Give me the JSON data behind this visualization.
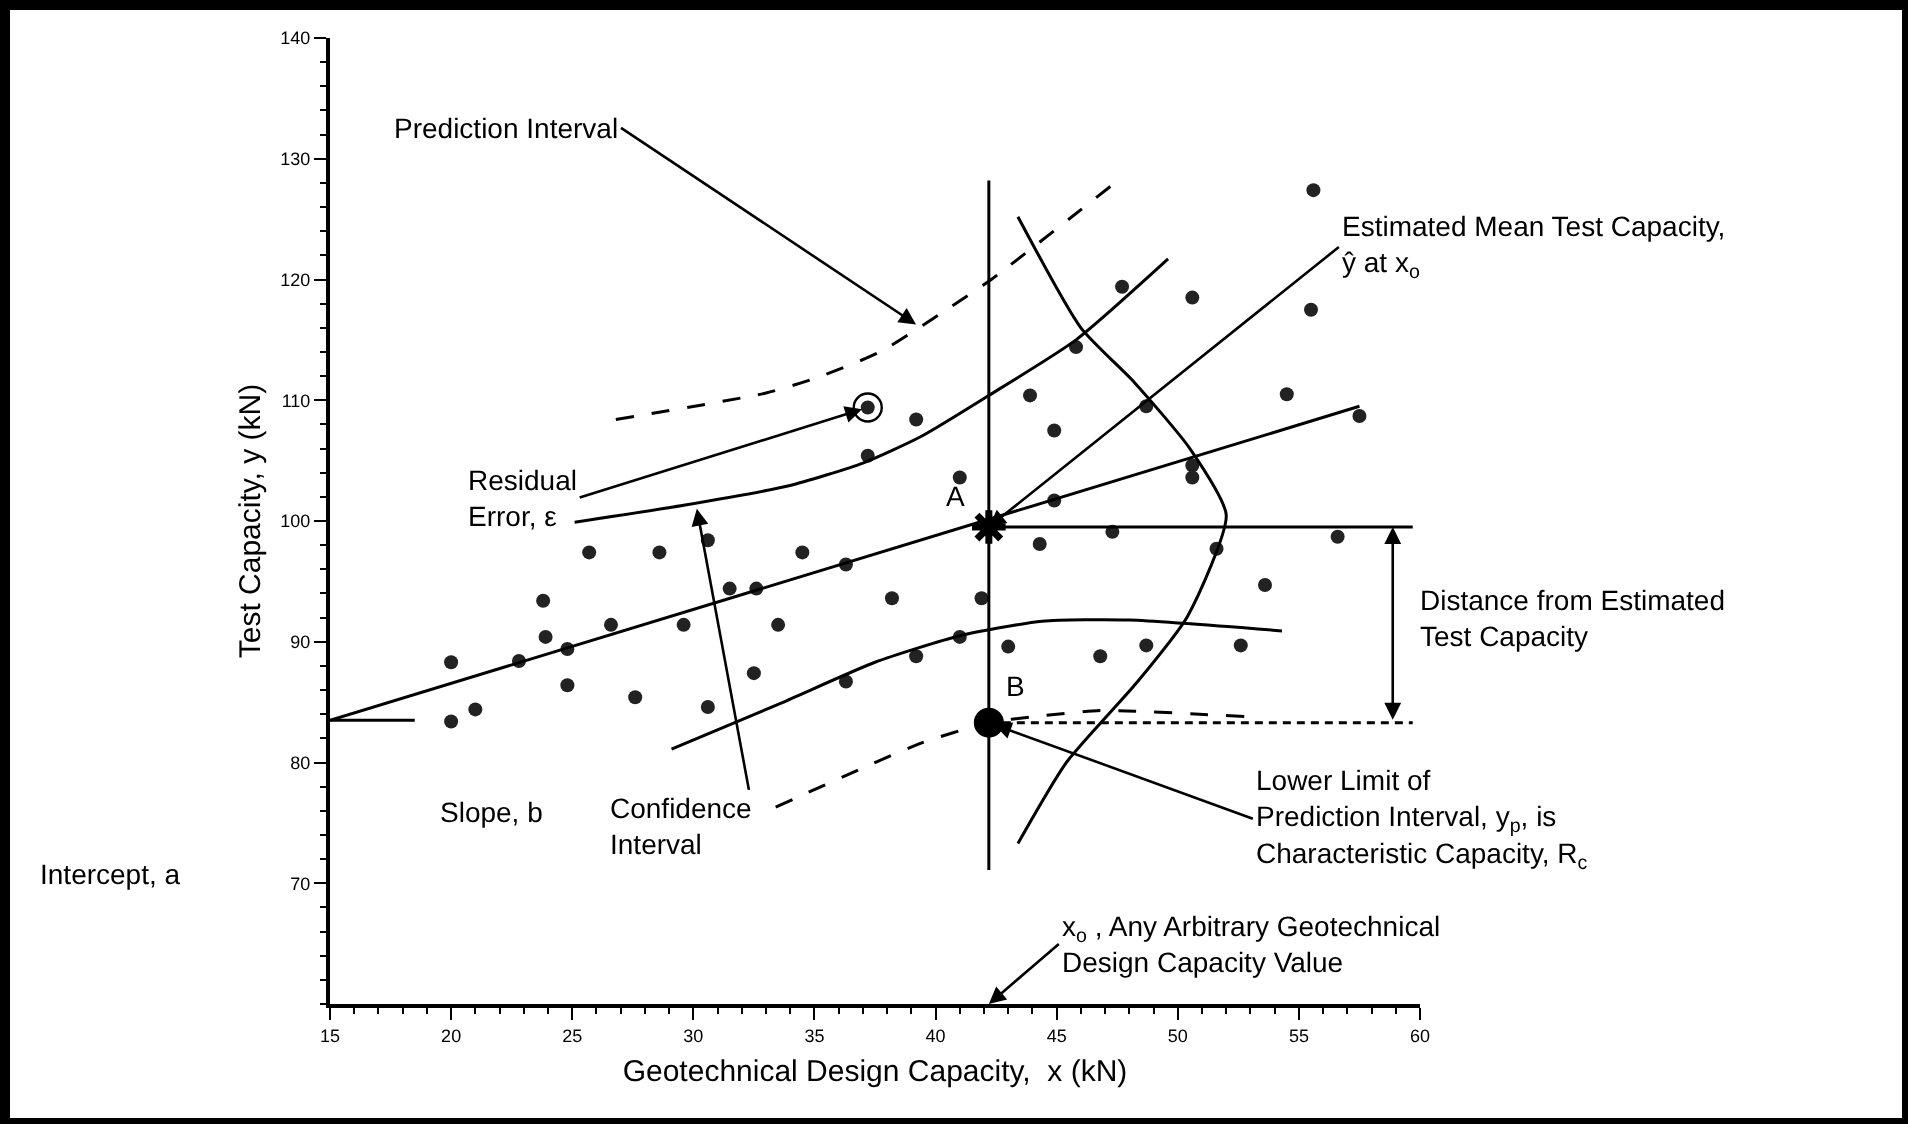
{
  "chart_data": {
    "type": "scatter",
    "xlabel": "Geotechnical Design Capacity,  x (kN)",
    "ylabel": "Test Capacity, y (kN)",
    "xlim": [
      15,
      60
    ],
    "xticks": [
      15,
      {
        "value": 16,
        "label": null
      },
      {
        "value": 17,
        "label": null
      },
      {
        "value": 18,
        "label": null
      },
      {
        "value": 19,
        "label": null
      },
      20,
      {
        "value": 21,
        "label": null
      },
      {
        "value": 22,
        "label": null
      },
      {
        "value": 23,
        "label": null
      },
      {
        "value": 24,
        "label": null
      },
      25,
      {
        "value": 26,
        "label": null
      },
      {
        "value": 27,
        "label": null
      },
      {
        "value": 28,
        "label": null
      },
      {
        "value": 29,
        "label": null
      },
      30,
      {
        "value": 31,
        "label": null
      },
      {
        "value": 32,
        "label": null
      },
      {
        "value": 33,
        "label": null
      },
      {
        "value": 34,
        "label": null
      },
      35,
      {
        "value": 36,
        "label": null
      },
      {
        "value": 37,
        "label": null
      },
      {
        "value": 38,
        "label": null
      },
      {
        "value": 39,
        "label": null
      },
      40,
      {
        "value": 41,
        "label": null
      },
      {
        "value": 42,
        "label": null
      },
      {
        "value": 43,
        "label": null
      },
      {
        "value": 44,
        "label": null
      },
      45,
      {
        "value": 46,
        "label": null
      },
      {
        "value": 47,
        "label": null
      },
      {
        "value": 48,
        "label": null
      },
      {
        "value": 49,
        "label": null
      },
      50,
      {
        "value": 51,
        "label": null
      },
      {
        "value": 52,
        "label": null
      },
      {
        "value": 53,
        "label": null
      },
      {
        "value": 54,
        "label": null
      },
      55,
      {
        "value": 56,
        "label": null
      },
      {
        "value": 57,
        "label": null
      },
      {
        "value": 58,
        "label": null
      },
      {
        "value": 59,
        "label": null
      },
      60
    ],
    "ylim": [
      60,
      140
    ],
    "yticks": [
      {
        "value": 60,
        "label": null
      },
      {
        "value": 62,
        "label": null
      },
      {
        "value": 64,
        "label": null
      },
      {
        "value": 66,
        "label": null
      },
      {
        "value": 68,
        "label": null
      },
      70,
      {
        "value": 72,
        "label": null
      },
      {
        "value": 74,
        "label": null
      },
      {
        "value": 76,
        "label": null
      },
      {
        "value": 78,
        "label": null
      },
      80,
      {
        "value": 82,
        "label": null
      },
      {
        "value": 84,
        "label": null
      },
      {
        "value": 86,
        "label": null
      },
      {
        "value": 88,
        "label": null
      },
      90,
      {
        "value": 92,
        "label": null
      },
      {
        "value": 94,
        "label": null
      },
      {
        "value": 96,
        "label": null
      },
      {
        "value": 98,
        "label": null
      },
      100,
      {
        "value": 102,
        "label": null
      },
      {
        "value": 104,
        "label": null
      },
      {
        "value": 106,
        "label": null
      },
      {
        "value": 108,
        "label": null
      },
      110,
      {
        "value": 112,
        "label": null
      },
      {
        "value": 114,
        "label": null
      },
      {
        "value": 116,
        "label": null
      },
      {
        "value": 118,
        "label": null
      },
      120,
      {
        "value": 122,
        "label": null
      },
      {
        "value": 124,
        "label": null
      },
      {
        "value": 126,
        "label": null
      },
      {
        "value": 128,
        "label": null
      },
      130,
      {
        "value": 132,
        "label": null
      },
      {
        "value": 134,
        "label": null
      },
      {
        "value": 136,
        "label": null
      },
      {
        "value": 138,
        "label": null
      },
      140
    ],
    "series": [
      {
        "marker": "circle",
        "color": "#222222",
        "x": [
          25.7,
          28.6,
          30.6,
          23.8,
          31.5,
          32.6,
          26.6,
          29.6,
          33.5,
          23.9,
          24.8,
          20,
          22.8,
          24.8,
          27.6,
          32.5,
          30.6,
          20,
          21,
          36.3,
          38.2,
          39.2,
          34.5,
          36.3,
          37.2,
          39.2,
          37.2,
          55.6,
          55.5,
          50.6,
          47.7,
          45.8,
          43.9,
          44.9,
          48.7,
          54.5,
          57.5,
          41,
          50.6,
          50.6,
          44.9,
          47.3,
          56.6,
          44.3,
          51.6,
          53.6,
          41.9,
          41,
          43,
          46.8,
          48.7,
          52.6
        ],
        "values": [
          97.4,
          97.4,
          98.4,
          93.4,
          94.4,
          94.4,
          91.4,
          91.4,
          91.4,
          90.4,
          89.4,
          88.3,
          88.4,
          86.4,
          85.4,
          87.4,
          84.6,
          83.4,
          84.4,
          86.7,
          93.6,
          88.8,
          97.4,
          96.4,
          109.4,
          108.4,
          105.4,
          127.4,
          117.5,
          118.5,
          119.4,
          114.4,
          110.4,
          107.5,
          109.5,
          110.5,
          108.7,
          103.6,
          104.6,
          103.6,
          101.7,
          99.1,
          98.7,
          98.1,
          97.7,
          94.7,
          93.6,
          90.4,
          89.6,
          88.8,
          89.7,
          89.7
        ]
      },
      {
        "type": "line",
        "line_style": "solid",
        "color": "#000000",
        "x": [
          15,
          57.5
        ],
        "values": [
          83.5,
          109.5
        ]
      },
      {
        "type": "line",
        "line_style": "solid",
        "color": "#000000",
        "x": [
          25.1,
          29.6,
          33.9,
          37,
          39.4,
          42.2,
          45.8,
          49.6
        ],
        "values": [
          99.9,
          101.3,
          102.9,
          104.8,
          107,
          110.4,
          115,
          121.7
        ]
      },
      {
        "type": "line",
        "line_style": "solid",
        "color": "#000000",
        "x": [
          29.1,
          33.6,
          37.5,
          41,
          44.4,
          48,
          54.3
        ],
        "values": [
          81.1,
          84.9,
          88.3,
          90.5,
          91.7,
          91.8,
          90.9
        ]
      },
      {
        "type": "line",
        "line_style": "dashed",
        "color": "#000000",
        "x": [
          26.8,
          33,
          35,
          37.7,
          40.6,
          42.3,
          47.4
        ],
        "values": [
          108.4,
          110.6,
          111.8,
          114,
          117.7,
          120,
          128
        ]
      },
      {
        "type": "line",
        "line_style": "dashed",
        "color": "#000000",
        "x": [
          33.4,
          39.4,
          42.2,
          44.1,
          46.8,
          52.8
        ],
        "values": [
          76.3,
          81.6,
          83.3,
          83.8,
          84.3,
          83.8
        ]
      },
      {
        "type": "line",
        "line_style": "solid",
        "color": "#000000",
        "x": [
          43.4,
          46,
          48.2,
          50.5,
          52,
          50.4,
          48.3,
          45.4,
          43.4
        ],
        "values": [
          125.2,
          116,
          111.5,
          106,
          100.5,
          92.1,
          86.6,
          80,
          73.3
        ]
      },
      {
        "type": "line",
        "line_style": "solid",
        "color": "#000000",
        "x": [
          42.2,
          42.2
        ],
        "values": [
          128.2,
          71.1
        ]
      },
      {
        "type": "line",
        "line_style": "solid",
        "color": "#000000",
        "x": [
          42.2,
          59.7
        ],
        "values": [
          99.5,
          99.5
        ]
      },
      {
        "type": "line",
        "line_style": "dotted",
        "color": "#000000",
        "x": [
          42.2,
          59.7
        ],
        "values": [
          83.3,
          83.3
        ]
      },
      {
        "type": "line",
        "line_style": "solid",
        "color": "#000000",
        "x": [
          15,
          18.5
        ],
        "values": [
          83.5,
          83.5
        ]
      },
      {
        "marker": "cross",
        "color": "#000000",
        "x": [
          42.2
        ],
        "values": [
          99.5
        ]
      },
      {
        "marker": "circle",
        "color": "#000000",
        "x": [
          42.2
        ],
        "values": [
          83.3
        ]
      },
      {
        "marker": "circle",
        "color": "#000000",
        "x": [
          37.2
        ],
        "values": [
          109.4
        ]
      }
    ],
    "annotations": [
      {
        "text": "Prediction Interval",
        "x": 39.4,
        "y": 116
      },
      {
        "text": "Residual\nError, ε",
        "x": 37.2,
        "y": 109.4
      },
      {
        "text": "Estimated Mean Test Capacity,\nŷ at x$_{o}$",
        "x": 42.2,
        "y": 99.5
      },
      {
        "text": "A",
        "x": 42.2,
        "y": 99.5
      },
      {
        "text": "B",
        "x": 42.2,
        "y": 83.3
      },
      "Distance from Estimated\nTest Capacity",
      {
        "text": "Lower Limit of\nPrediction Interval, y$_{p}$, is\nCharacteristic Capacity, R$_{c}$",
        "x": 42.2,
        "y": 83.3
      },
      "Slope, b",
      {
        "text": "Confidence\nInterval",
        "x": 30.1,
        "y": 101.5
      },
      "Intercept, a",
      "x$_{o}$ , Any Arbitrary Geotechnical\nDesign Capacity Value"
    ]
  }
}
